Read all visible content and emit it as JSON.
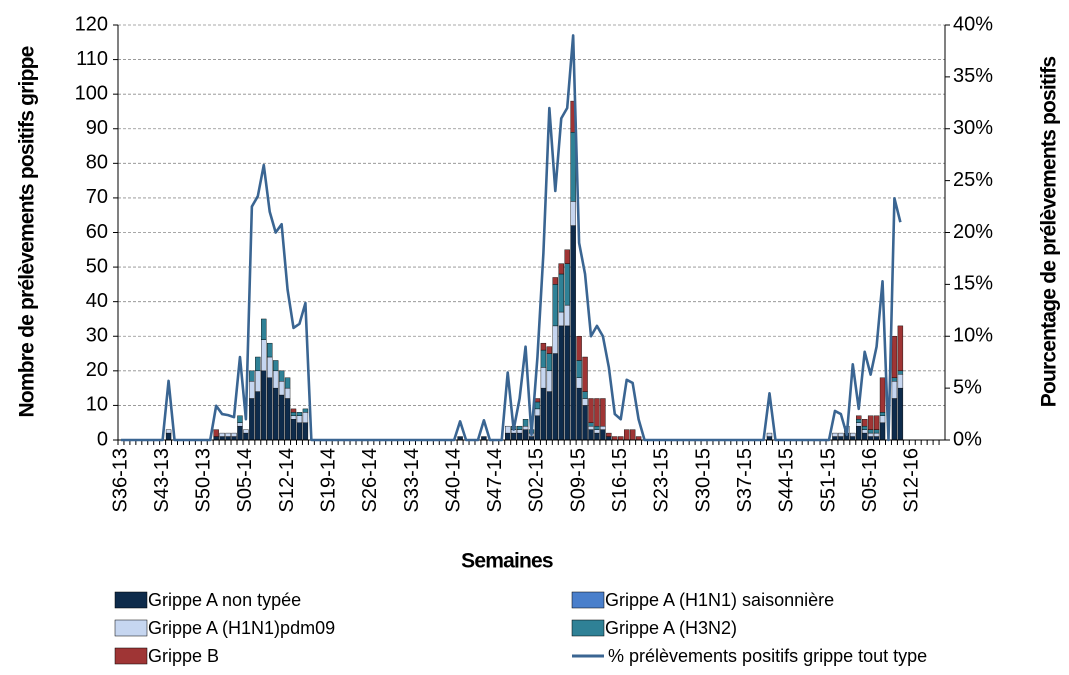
{
  "chart_data": {
    "type": "bar",
    "stacked": true,
    "x_label": "Semaines",
    "y_label": "Nombre de prélèvements positifs grippe",
    "y2_label": "Pourcentage de prélèvements positifs",
    "categories": [
      "S36-13",
      null,
      null,
      null,
      null,
      null,
      null,
      "S43-13",
      null,
      null,
      null,
      null,
      null,
      null,
      "S50-13",
      null,
      null,
      null,
      null,
      null,
      null,
      "S05-14",
      null,
      null,
      null,
      null,
      null,
      null,
      "S12-14",
      null,
      null,
      null,
      null,
      null,
      null,
      "S19-14",
      null,
      null,
      null,
      null,
      null,
      null,
      "S26-14",
      null,
      null,
      null,
      null,
      null,
      null,
      "S33-14",
      null,
      null,
      null,
      null,
      null,
      null,
      "S40-14",
      null,
      null,
      null,
      null,
      null,
      null,
      "S47-14",
      null,
      null,
      null,
      null,
      null,
      null,
      "S02-15",
      null,
      null,
      null,
      null,
      null,
      null,
      "S09-15",
      null,
      null,
      null,
      null,
      null,
      null,
      "S16-15",
      null,
      null,
      null,
      null,
      null,
      null,
      "S23-15",
      null,
      null,
      null,
      null,
      null,
      null,
      "S30-15",
      null,
      null,
      null,
      null,
      null,
      null,
      "S37-15",
      null,
      null,
      null,
      null,
      null,
      null,
      "S44-15",
      null,
      null,
      null,
      null,
      null,
      null,
      "S51-15",
      null,
      null,
      null,
      null,
      null,
      null,
      "S05-16",
      null,
      null,
      null,
      null,
      null,
      null,
      "S12-16",
      null,
      null,
      null,
      null,
      null
    ],
    "ylim": [
      0,
      120
    ],
    "yticks": [
      0,
      10,
      20,
      30,
      40,
      50,
      60,
      70,
      80,
      90,
      100,
      110,
      120
    ],
    "y2lim": [
      0,
      40
    ],
    "y2ticks": [
      {
        "value": 0,
        "label": "0%"
      },
      {
        "value": 5,
        "label": "5%"
      },
      {
        "value": 10,
        "label": "10%"
      },
      {
        "value": 15,
        "label": "15%"
      },
      {
        "value": 20,
        "label": "20%"
      },
      {
        "value": 25,
        "label": "25%"
      },
      {
        "value": 30,
        "label": "30%"
      },
      {
        "value": 35,
        "label": "35%"
      },
      {
        "value": 40,
        "label": "40%"
      }
    ],
    "grid": true,
    "series": [
      {
        "name": "Grippe A non typée",
        "color": "#0e2b4b",
        "values": [
          0,
          0,
          0,
          0,
          0,
          0,
          0,
          0,
          2,
          0,
          0,
          0,
          0,
          0,
          0,
          0,
          1,
          1,
          1,
          1,
          4,
          2,
          12,
          14,
          20,
          18,
          15,
          13,
          12,
          6,
          5,
          5,
          0,
          0,
          0,
          0,
          0,
          0,
          0,
          0,
          0,
          0,
          0,
          0,
          0,
          0,
          0,
          0,
          0,
          0,
          0,
          0,
          0,
          0,
          0,
          0,
          0,
          1,
          0,
          0,
          0,
          1,
          0,
          0,
          0,
          2,
          2,
          2,
          3,
          1,
          7,
          15,
          14,
          25,
          33,
          33,
          62,
          15,
          10,
          3,
          2,
          3,
          1,
          0,
          0,
          0,
          0,
          0,
          0,
          0,
          0,
          0,
          0,
          0,
          0,
          0,
          0,
          0,
          0,
          0,
          0,
          0,
          0,
          0,
          0,
          0,
          0,
          0,
          0,
          1,
          0,
          0,
          0,
          0,
          0,
          0,
          0,
          0,
          0,
          0,
          1,
          1,
          2,
          1,
          4,
          2,
          1,
          1,
          5,
          0,
          12,
          15,
          0,
          0,
          0,
          0,
          0,
          0,
          0
        ]
      },
      {
        "name": "Grippe A (H1N1) saisonnière",
        "color": "#4a7fcb",
        "values": [
          0,
          0,
          0,
          0,
          0,
          0,
          0,
          0,
          0,
          0,
          0,
          0,
          0,
          0,
          0,
          0,
          0,
          0,
          0,
          0,
          0,
          0,
          0,
          0,
          0,
          0,
          0,
          0,
          0,
          0,
          0,
          0,
          0,
          0,
          0,
          0,
          0,
          0,
          0,
          0,
          0,
          0,
          0,
          0,
          0,
          0,
          0,
          0,
          0,
          0,
          0,
          0,
          0,
          0,
          0,
          0,
          0,
          0,
          0,
          0,
          0,
          0,
          0,
          0,
          0,
          0,
          0,
          0,
          0,
          0,
          0,
          0,
          0,
          0,
          0,
          0,
          0,
          0,
          0,
          0,
          0,
          0,
          0,
          0,
          0,
          0,
          0,
          0,
          0,
          0,
          0,
          0,
          0,
          0,
          0,
          0,
          0,
          0,
          0,
          0,
          0,
          0,
          0,
          0,
          0,
          0,
          0,
          0,
          0,
          0,
          0,
          0,
          0,
          0,
          0,
          0,
          0,
          0,
          0,
          0,
          0,
          0,
          0,
          0,
          0,
          0,
          0,
          0,
          0,
          0,
          0,
          0,
          0,
          0,
          0,
          0,
          0,
          0,
          0
        ]
      },
      {
        "name": "Grippe A (H1N1)pdm09",
        "color": "#c6d6f0",
        "values": [
          0,
          0,
          0,
          0,
          0,
          0,
          0,
          0,
          1,
          0,
          0,
          0,
          0,
          0,
          0,
          0,
          0,
          1,
          1,
          1,
          1,
          1,
          5,
          6,
          9,
          6,
          5,
          4,
          3,
          1,
          2,
          3,
          0,
          0,
          0,
          0,
          0,
          0,
          0,
          0,
          0,
          0,
          0,
          0,
          0,
          0,
          0,
          0,
          0,
          0,
          0,
          0,
          0,
          0,
          0,
          0,
          0,
          0,
          0,
          0,
          0,
          0,
          0,
          0,
          0,
          2,
          1,
          1,
          1,
          1,
          2,
          6,
          6,
          8,
          4,
          6,
          7,
          3,
          2,
          1,
          1,
          1,
          0,
          0,
          0,
          0,
          0,
          0,
          0,
          0,
          0,
          0,
          0,
          0,
          0,
          0,
          0,
          0,
          0,
          0,
          0,
          0,
          0,
          0,
          0,
          0,
          0,
          0,
          0,
          1,
          0,
          0,
          0,
          0,
          0,
          0,
          0,
          0,
          0,
          0,
          1,
          1,
          2,
          1,
          1,
          1,
          1,
          1,
          2,
          0,
          5,
          4,
          0,
          0,
          0,
          0,
          0,
          0,
          0
        ]
      },
      {
        "name": "Grippe A (H3N2)",
        "color": "#2f8196",
        "values": [
          0,
          0,
          0,
          0,
          0,
          0,
          0,
          0,
          0,
          0,
          0,
          0,
          0,
          0,
          0,
          0,
          0,
          0,
          0,
          0,
          2,
          0,
          3,
          4,
          6,
          4,
          3,
          3,
          3,
          1,
          1,
          1,
          0,
          0,
          0,
          0,
          0,
          0,
          0,
          0,
          0,
          0,
          0,
          0,
          0,
          0,
          0,
          0,
          0,
          0,
          0,
          0,
          0,
          0,
          0,
          0,
          0,
          0,
          0,
          0,
          0,
          0,
          0,
          0,
          0,
          0,
          1,
          1,
          2,
          1,
          2,
          5,
          5,
          12,
          11,
          12,
          20,
          5,
          2,
          1,
          1,
          0,
          0,
          0,
          0,
          0,
          0,
          0,
          0,
          0,
          0,
          0,
          0,
          0,
          0,
          0,
          0,
          0,
          0,
          0,
          0,
          0,
          0,
          0,
          0,
          0,
          0,
          0,
          0,
          0,
          0,
          0,
          0,
          0,
          0,
          0,
          0,
          0,
          0,
          0,
          0,
          0,
          0,
          0,
          1,
          1,
          1,
          1,
          1,
          0,
          1,
          1,
          0,
          0,
          0,
          0,
          0,
          0,
          0
        ]
      },
      {
        "name": "Grippe B",
        "color": "#9f3535",
        "values": [
          0,
          0,
          0,
          0,
          0,
          0,
          0,
          0,
          0,
          0,
          0,
          0,
          0,
          0,
          0,
          0,
          2,
          0,
          0,
          0,
          0,
          0,
          0,
          0,
          0,
          0,
          0,
          0,
          0,
          1,
          0,
          0,
          0,
          0,
          0,
          0,
          0,
          0,
          0,
          0,
          0,
          0,
          0,
          0,
          0,
          0,
          0,
          0,
          0,
          0,
          0,
          0,
          0,
          0,
          0,
          0,
          0,
          0,
          0,
          0,
          0,
          0,
          0,
          0,
          0,
          0,
          0,
          0,
          0,
          0,
          1,
          2,
          2,
          2,
          3,
          4,
          9,
          7,
          10,
          7,
          8,
          8,
          1,
          1,
          1,
          3,
          3,
          1,
          0,
          0,
          0,
          0,
          0,
          0,
          0,
          0,
          0,
          0,
          0,
          0,
          0,
          0,
          0,
          0,
          0,
          0,
          0,
          0,
          0,
          0,
          0,
          0,
          0,
          0,
          0,
          0,
          0,
          0,
          0,
          0,
          0,
          0,
          0,
          0,
          1,
          2,
          4,
          4,
          10,
          0,
          12,
          13,
          0,
          0,
          0,
          0,
          0,
          0,
          0
        ]
      },
      {
        "name": "% prélèvements positifs grippe tout type",
        "type": "line",
        "axis": "y2",
        "color": "#3a6592",
        "values": [
          0,
          0,
          0,
          0,
          0,
          0,
          0,
          0,
          5.7,
          0,
          0,
          0,
          0,
          0,
          0,
          0,
          3.3,
          2.5,
          2.4,
          2.2,
          8,
          2,
          22.5,
          23.5,
          26.5,
          22,
          20,
          20.8,
          14.5,
          10.8,
          11.2,
          13.2,
          0,
          0,
          0,
          0,
          0,
          0,
          0,
          0,
          0,
          0,
          0,
          0,
          0,
          0,
          0,
          0,
          0,
          0,
          0,
          0,
          0,
          0,
          0,
          0,
          0,
          1.8,
          0,
          0,
          0,
          1.9,
          0,
          0,
          0,
          6.5,
          1,
          4,
          9,
          0.5,
          8,
          18,
          32,
          24,
          31,
          32,
          39,
          19,
          16,
          10,
          11,
          10,
          7,
          2.5,
          2,
          5.8,
          5.5,
          2,
          0,
          0,
          0,
          0,
          0,
          0,
          0,
          0,
          0,
          0,
          0,
          0,
          0,
          0,
          0,
          0,
          0,
          0,
          0,
          0,
          0,
          4.5,
          0,
          0,
          0,
          0,
          0,
          0,
          0,
          0,
          0,
          0,
          2.8,
          2.5,
          0.5,
          7.3,
          3,
          8.5,
          6.3,
          9,
          15.3,
          0,
          23.3,
          21,
          null,
          null,
          null,
          null,
          null,
          null,
          null
        ]
      }
    ]
  }
}
